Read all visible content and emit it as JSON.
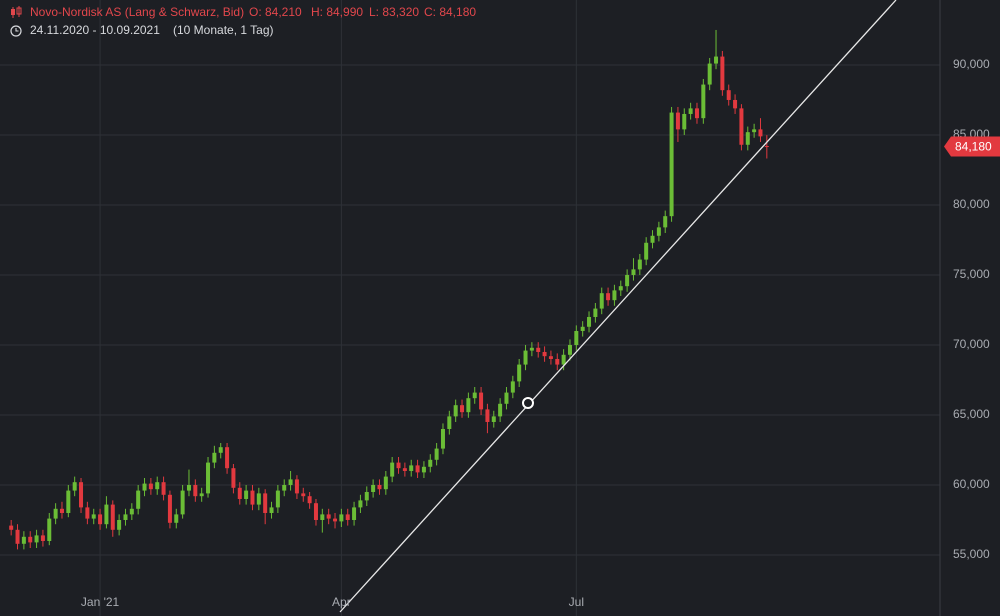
{
  "chart_data": {
    "type": "candlestick",
    "title": "Novo-Nordisk AS (Lang & Schwarz, Bid)",
    "ohlc_texts": [
      "O: 84,210",
      "H: 84,990",
      "L: 83,320",
      "C: 84,180"
    ],
    "date_range": "24.11.2020 - 10.09.2021",
    "period": "(10 Monate, 1 Tag)",
    "up_color": "#6bbd36",
    "down_color": "#e2393f",
    "ylim": [
      52.5,
      94.64
    ],
    "yticks": [
      {
        "value": 55,
        "label": "55,000"
      },
      {
        "value": 60,
        "label": "60,000"
      },
      {
        "value": 65,
        "label": "65,000"
      },
      {
        "value": 70,
        "label": "70,000"
      },
      {
        "value": 75,
        "label": "75,000"
      },
      {
        "value": 80,
        "label": "80,000"
      },
      {
        "value": 85,
        "label": "85,000"
      },
      {
        "value": 90,
        "label": "90,000"
      }
    ],
    "grid": true,
    "last_price": {
      "value": 84.18,
      "label": "84,180"
    },
    "categories": [
      null,
      null,
      null,
      null,
      null,
      null,
      null,
      null,
      null,
      null,
      null,
      null,
      null,
      null,
      "Jan '21",
      null,
      null,
      null,
      null,
      null,
      null,
      null,
      null,
      null,
      null,
      null,
      null,
      null,
      null,
      null,
      null,
      null,
      null,
      null,
      null,
      null,
      null,
      null,
      null,
      null,
      null,
      null,
      null,
      null,
      null,
      null,
      null,
      null,
      null,
      null,
      null,
      null,
      "Apr",
      null,
      null,
      null,
      null,
      null,
      null,
      null,
      null,
      null,
      null,
      null,
      null,
      null,
      null,
      null,
      null,
      null,
      null,
      null,
      null,
      null,
      null,
      null,
      null,
      null,
      null,
      null,
      null,
      null,
      null,
      null,
      null,
      null,
      null,
      null,
      null,
      "Jul",
      null,
      null,
      null,
      null,
      null,
      null,
      null,
      null,
      null,
      null,
      null,
      null,
      null,
      null,
      null,
      null,
      null,
      null,
      null,
      null,
      null,
      null,
      null,
      null,
      null,
      null,
      null,
      null,
      null,
      null
    ],
    "open": [
      57.1,
      56.8,
      55.8,
      56.3,
      55.9,
      56.4,
      56.0,
      57.6,
      58.3,
      58.0,
      59.6,
      60.2,
      58.4,
      57.6,
      57.9,
      57.2,
      58.6,
      56.8,
      57.5,
      57.9,
      58.3,
      59.6,
      60.1,
      59.7,
      60.2,
      59.3,
      57.3,
      57.9,
      59.6,
      60.0,
      59.2,
      59.4,
      61.6,
      62.3,
      62.7,
      61.2,
      59.8,
      59.0,
      59.6,
      58.6,
      59.4,
      58.0,
      58.4,
      59.6,
      60.0,
      60.4,
      59.4,
      59.2,
      58.7,
      57.5,
      57.9,
      57.6,
      57.4,
      57.9,
      57.5,
      58.4,
      58.9,
      59.5,
      60.0,
      59.7,
      60.6,
      61.6,
      61.2,
      61.0,
      61.4,
      60.9,
      61.3,
      61.8,
      62.6,
      64.0,
      64.9,
      65.7,
      65.2,
      66.2,
      66.6,
      65.4,
      64.5,
      64.9,
      65.8,
      66.6,
      67.4,
      68.6,
      69.6,
      69.8,
      69.5,
      69.2,
      69.0,
      68.6,
      69.3,
      70.0,
      71.0,
      71.3,
      72.0,
      72.6,
      73.7,
      73.2,
      73.9,
      74.2,
      75.0,
      75.4,
      76.1,
      77.3,
      77.8,
      78.4,
      79.2,
      86.6,
      85.4,
      86.5,
      86.9,
      86.2,
      88.6,
      90.1,
      90.6,
      88.2,
      87.5,
      86.9,
      84.3,
      85.2,
      85.4,
      84.21
    ],
    "high": [
      57.5,
      57.2,
      56.7,
      56.7,
      56.8,
      56.8,
      58.0,
      58.7,
      58.8,
      60.0,
      60.6,
      60.5,
      58.8,
      58.3,
      58.3,
      59.2,
      58.9,
      57.9,
      58.3,
      58.7,
      60.0,
      60.5,
      60.5,
      60.6,
      60.6,
      59.6,
      58.3,
      60.0,
      61.1,
      60.4,
      59.8,
      62.0,
      62.8,
      63.0,
      63.0,
      61.5,
      60.2,
      60.0,
      60.0,
      59.8,
      59.7,
      58.8,
      60.0,
      60.4,
      61.0,
      60.7,
      59.8,
      59.5,
      59.0,
      58.3,
      58.3,
      58.0,
      58.3,
      58.3,
      58.8,
      59.3,
      59.9,
      60.4,
      60.4,
      61.0,
      62.0,
      62.0,
      61.6,
      61.8,
      61.8,
      61.7,
      62.2,
      63.0,
      64.4,
      65.3,
      66.1,
      66.1,
      66.6,
      67.0,
      67.0,
      65.8,
      65.3,
      66.2,
      67.0,
      67.8,
      69.0,
      70.0,
      70.2,
      70.2,
      69.9,
      69.6,
      69.4,
      69.7,
      70.4,
      71.4,
      71.7,
      72.4,
      73.0,
      74.1,
      74.1,
      74.3,
      74.6,
      75.4,
      76.2,
      76.5,
      77.7,
      78.2,
      78.8,
      79.6,
      87.0,
      87.0,
      86.9,
      87.3,
      87.3,
      89.0,
      90.5,
      92.5,
      91.0,
      88.6,
      87.9,
      87.2,
      85.6,
      85.8,
      86.2,
      84.99
    ],
    "low": [
      56.4,
      55.4,
      55.4,
      55.5,
      55.5,
      55.6,
      55.7,
      57.2,
      57.6,
      57.7,
      59.2,
      58.0,
      57.2,
      57.2,
      56.8,
      56.9,
      56.3,
      56.4,
      57.1,
      57.5,
      57.9,
      59.2,
      59.3,
      59.3,
      58.9,
      56.9,
      56.9,
      57.6,
      59.2,
      58.8,
      58.8,
      59.1,
      61.2,
      61.9,
      60.8,
      59.4,
      58.6,
      58.6,
      58.2,
      58.2,
      57.2,
      57.6,
      58.0,
      59.2,
      59.6,
      59.0,
      58.8,
      58.3,
      57.1,
      56.6,
      57.2,
      56.9,
      57.0,
      57.1,
      57.1,
      58.0,
      58.5,
      59.1,
      59.3,
      59.3,
      60.2,
      60.8,
      60.6,
      60.6,
      60.5,
      60.5,
      60.9,
      61.4,
      62.2,
      63.6,
      64.5,
      64.8,
      64.8,
      65.8,
      65.0,
      63.7,
      64.1,
      64.5,
      65.4,
      66.2,
      67.0,
      68.2,
      69.2,
      69.1,
      68.8,
      68.6,
      68.2,
      68.2,
      68.9,
      69.6,
      70.6,
      70.9,
      71.6,
      72.2,
      72.8,
      72.8,
      73.5,
      73.8,
      74.6,
      75.0,
      75.7,
      76.9,
      77.4,
      78.0,
      78.8,
      84.5,
      85.0,
      86.1,
      85.8,
      85.8,
      88.2,
      89.7,
      87.8,
      87.1,
      86.5,
      83.9,
      83.9,
      84.8,
      84.5,
      83.32
    ],
    "close": [
      56.8,
      55.8,
      56.3,
      55.9,
      56.4,
      56.0,
      57.6,
      58.3,
      58.0,
      59.6,
      60.2,
      58.4,
      57.6,
      57.9,
      57.2,
      58.6,
      56.8,
      57.5,
      57.9,
      58.3,
      59.6,
      60.1,
      59.7,
      60.2,
      59.3,
      57.3,
      57.9,
      59.6,
      60.0,
      59.2,
      59.4,
      61.6,
      62.3,
      62.7,
      61.2,
      59.8,
      59.0,
      59.6,
      58.6,
      59.4,
      58.0,
      58.4,
      59.6,
      60.0,
      60.4,
      59.4,
      59.2,
      58.7,
      57.5,
      57.9,
      57.6,
      57.4,
      57.9,
      57.5,
      58.4,
      58.9,
      59.5,
      60.0,
      59.7,
      60.6,
      61.6,
      61.2,
      61.0,
      61.4,
      60.9,
      61.3,
      61.8,
      62.6,
      64.0,
      64.9,
      65.7,
      65.2,
      66.2,
      66.6,
      65.4,
      64.5,
      64.9,
      65.8,
      66.6,
      67.4,
      68.6,
      69.6,
      69.8,
      69.5,
      69.2,
      69.0,
      68.6,
      69.3,
      70.0,
      71.0,
      71.3,
      72.0,
      72.6,
      73.7,
      73.2,
      73.9,
      74.2,
      75.0,
      75.4,
      76.1,
      77.3,
      77.8,
      78.4,
      79.2,
      86.6,
      85.4,
      86.5,
      86.9,
      86.2,
      88.6,
      90.1,
      90.6,
      88.2,
      87.5,
      86.9,
      84.3,
      85.2,
      85.4,
      84.9,
      84.18
    ]
  }
}
